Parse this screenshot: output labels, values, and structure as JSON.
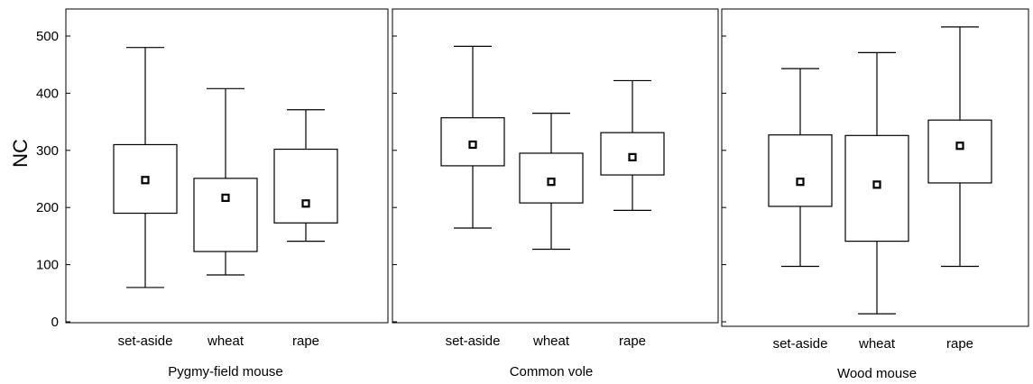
{
  "chart_data": [
    {
      "type": "boxplot",
      "title": "Pygmy-field mouse",
      "ylabel": "NC",
      "ylim": [
        0,
        550
      ],
      "yticks": [
        0,
        100,
        200,
        300,
        400,
        500
      ],
      "categories": [
        "set-aside",
        "wheat",
        "rape"
      ],
      "boxes": [
        {
          "category": "set-aside",
          "min": 60,
          "q1": 190,
          "mean": 248,
          "q3": 310,
          "max": 480
        },
        {
          "category": "wheat",
          "min": 82,
          "q1": 123,
          "mean": 217,
          "q3": 251,
          "max": 408
        },
        {
          "category": "rape",
          "min": 141,
          "q1": 173,
          "mean": 207,
          "q3": 302,
          "max": 371
        }
      ]
    },
    {
      "type": "boxplot",
      "title": "Common vole",
      "ylim": [
        0,
        550
      ],
      "categories": [
        "set-aside",
        "wheat",
        "rape"
      ],
      "boxes": [
        {
          "category": "set-aside",
          "min": 164,
          "q1": 273,
          "mean": 310,
          "q3": 357,
          "max": 482
        },
        {
          "category": "wheat",
          "min": 127,
          "q1": 208,
          "mean": 245,
          "q3": 295,
          "max": 365
        },
        {
          "category": "rape",
          "min": 195,
          "q1": 257,
          "mean": 288,
          "q3": 331,
          "max": 422
        }
      ]
    },
    {
      "type": "boxplot",
      "title": "Wood mouse",
      "ylim": [
        0,
        550
      ],
      "categories": [
        "set-aside",
        "wheat",
        "rape"
      ],
      "boxes": [
        {
          "category": "set-aside",
          "min": 97,
          "q1": 202,
          "mean": 245,
          "q3": 327,
          "max": 443
        },
        {
          "category": "wheat",
          "min": 14,
          "q1": 141,
          "mean": 240,
          "q3": 326,
          "max": 471
        },
        {
          "category": "rape",
          "min": 97,
          "q1": 243,
          "mean": 308,
          "q3": 353,
          "max": 516
        }
      ]
    }
  ]
}
